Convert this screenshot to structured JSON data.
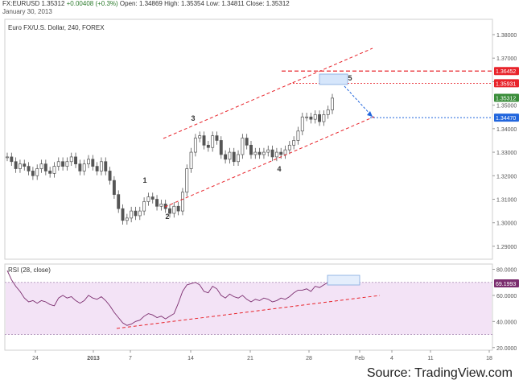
{
  "header": {
    "symbol": "FX:EURUSD",
    "last": "1.35312",
    "change": "+0.00408 (+0.3%)",
    "open_label": "Open:",
    "open": "1.34869",
    "high_label": "High:",
    "high": "1.35354",
    "low_label": "Low:",
    "low": "1.34811",
    "close_label": "Close:",
    "close": "1.35312",
    "date": "January 30, 2013"
  },
  "chart_data": [
    {
      "type": "candlestick",
      "title": "Euro FX/U.S. Dollar, 240, FOREX",
      "ylim": [
        1.2845,
        1.3865
      ],
      "y_ticks": [
        "1.38000",
        "1.37000",
        "1.36000",
        "1.35000",
        "1.34000",
        "1.33000",
        "1.32000",
        "1.31000",
        "1.30000",
        "1.29000"
      ],
      "x_ticks": [
        "24",
        "2013",
        "7",
        "14",
        "21",
        "28",
        "Feb",
        "4",
        "11",
        "18"
      ],
      "price_flags": [
        {
          "value": "1.36452",
          "color": "#e8232a"
        },
        {
          "value": "1.35931",
          "color": "#e8232a"
        },
        {
          "value": "1.35312",
          "color": "#3a8d3a"
        },
        {
          "value": "1.34470",
          "color": "#2266dd"
        }
      ],
      "wave_labels": [
        "1",
        "2",
        "3",
        "4",
        "5"
      ],
      "close_path": [
        1.328,
        1.326,
        1.323,
        1.325,
        1.324,
        1.322,
        1.32,
        1.323,
        1.325,
        1.322,
        1.321,
        1.324,
        1.326,
        1.324,
        1.326,
        1.328,
        1.325,
        1.322,
        1.325,
        1.327,
        1.324,
        1.322,
        1.326,
        1.322,
        1.318,
        1.312,
        1.306,
        1.301,
        1.302,
        1.305,
        1.303,
        1.305,
        1.309,
        1.311,
        1.31,
        1.307,
        1.308,
        1.306,
        1.304,
        1.307,
        1.305,
        1.313,
        1.323,
        1.33,
        1.336,
        1.337,
        1.333,
        1.332,
        1.337,
        1.335,
        1.329,
        1.327,
        1.33,
        1.326,
        1.329,
        1.336,
        1.333,
        1.329,
        1.33,
        1.329,
        1.33,
        1.331,
        1.328,
        1.33,
        1.329,
        1.331,
        1.333,
        1.335,
        1.339,
        1.345,
        1.345,
        1.344,
        1.346,
        1.343,
        1.346,
        1.348,
        1.353
      ]
    },
    {
      "type": "line",
      "title": "RSI (28, close)",
      "ylim": [
        18,
        84
      ],
      "y_ticks": [
        "80.0000",
        "60.0000",
        "40.0000",
        "20.0000"
      ],
      "flag": "69.1993",
      "upper_band": 70,
      "lower_band": 30,
      "values": [
        79,
        72,
        67,
        63,
        58,
        55,
        56,
        54,
        56,
        55,
        53,
        52,
        58,
        60,
        58,
        59,
        56,
        54,
        56,
        60,
        58,
        57,
        59,
        56,
        52,
        47,
        43,
        39,
        37,
        38,
        40,
        41,
        44,
        46,
        45,
        43,
        44,
        42,
        44,
        46,
        54,
        63,
        68,
        69,
        70,
        68,
        63,
        62,
        67,
        65,
        60,
        58,
        61,
        59,
        58,
        60,
        57,
        55,
        57,
        56,
        58,
        57,
        55,
        56,
        58,
        57,
        59,
        62,
        64,
        64,
        65,
        63,
        67,
        66,
        68,
        70,
        69.2
      ]
    }
  ],
  "source": "Source: TradingView.com",
  "colors": {
    "candle": "#555555",
    "trend": "#e8232a",
    "target": "#2266dd",
    "rsi_line": "#7b2d6e",
    "rsi_fill": "#f3e3f6"
  }
}
